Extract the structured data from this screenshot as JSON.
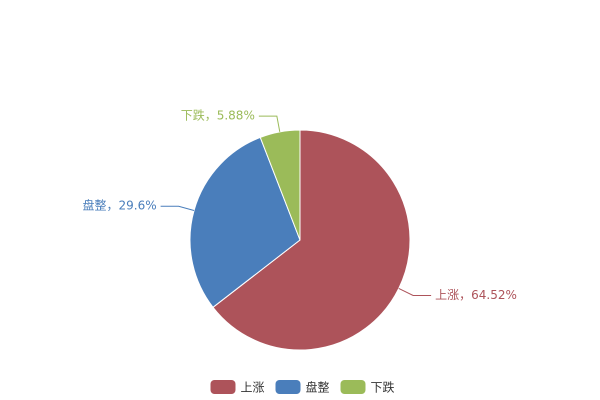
{
  "chart_data": {
    "type": "pie",
    "categories": [
      "上涨",
      "盘整",
      "下跌"
    ],
    "values": [
      64.52,
      29.6,
      5.88
    ],
    "value_labels": [
      "上涨，64.52%",
      "盘整，29.6%",
      "下跌，5.88%"
    ],
    "colors": [
      "#ad535a",
      "#4a7ebb",
      "#9bbb59"
    ],
    "legend": "bottom"
  }
}
